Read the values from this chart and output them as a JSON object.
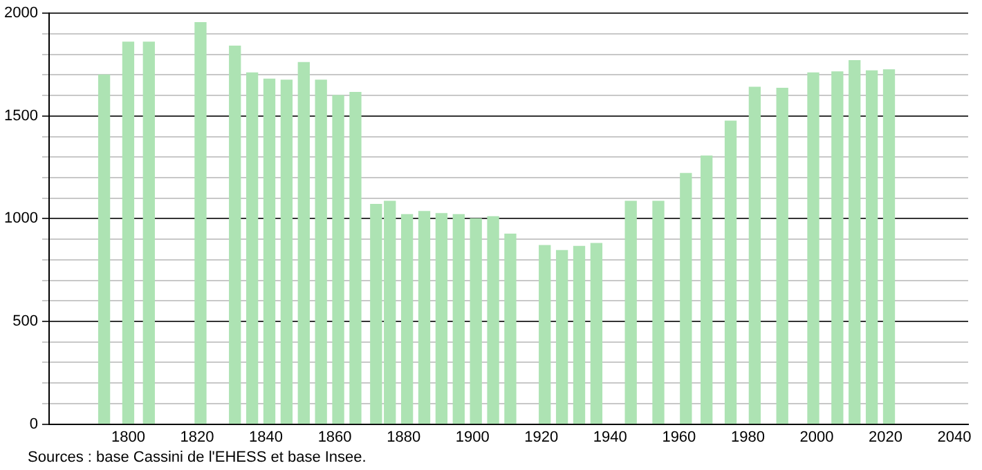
{
  "chart_data": {
    "type": "bar",
    "annotations": [
      "Sources : base Cassini de l'EHESS et base Insee."
    ],
    "x": [
      1793,
      1800,
      1806,
      1821,
      1831,
      1836,
      1841,
      1846,
      1851,
      1856,
      1861,
      1866,
      1872,
      1876,
      1881,
      1886,
      1891,
      1896,
      1901,
      1906,
      1911,
      1921,
      1926,
      1931,
      1936,
      1946,
      1954,
      1962,
      1968,
      1975,
      1982,
      1990,
      1999,
      2006,
      2011,
      2016,
      2021
    ],
    "values": [
      1700,
      1860,
      1860,
      1955,
      1840,
      1710,
      1680,
      1675,
      1760,
      1675,
      1600,
      1615,
      1070,
      1085,
      1020,
      1035,
      1025,
      1020,
      1000,
      1010,
      925,
      870,
      845,
      865,
      880,
      1085,
      1085,
      1220,
      1305,
      1475,
      1640,
      1635,
      1710,
      1715,
      1770,
      1720,
      1725
    ],
    "color": "#ade3b3",
    "xlim": [
      1777,
      2044
    ],
    "xticks": [
      1800,
      1820,
      1840,
      1860,
      1880,
      1900,
      1920,
      1940,
      1960,
      1980,
      2000,
      2020,
      2040
    ],
    "ylim": [
      0,
      2000
    ],
    "yticks": [
      0,
      {
        "value": 100,
        "label": null
      },
      {
        "value": 200,
        "label": null
      },
      {
        "value": 300,
        "label": null
      },
      {
        "value": 400,
        "label": null
      },
      500,
      {
        "value": 600,
        "label": null
      },
      {
        "value": 700,
        "label": null
      },
      {
        "value": 800,
        "label": null
      },
      {
        "value": 900,
        "label": null
      },
      1000,
      {
        "value": 1100,
        "label": null
      },
      {
        "value": 1200,
        "label": null
      },
      {
        "value": 1300,
        "label": null
      },
      {
        "value": 1400,
        "label": null
      },
      1500,
      {
        "value": 1600,
        "label": null
      },
      {
        "value": 1700,
        "label": null
      },
      {
        "value": 1800,
        "label": null
      },
      {
        "value": 1900,
        "label": null
      },
      2000
    ],
    "grid": "y",
    "legend": false
  }
}
